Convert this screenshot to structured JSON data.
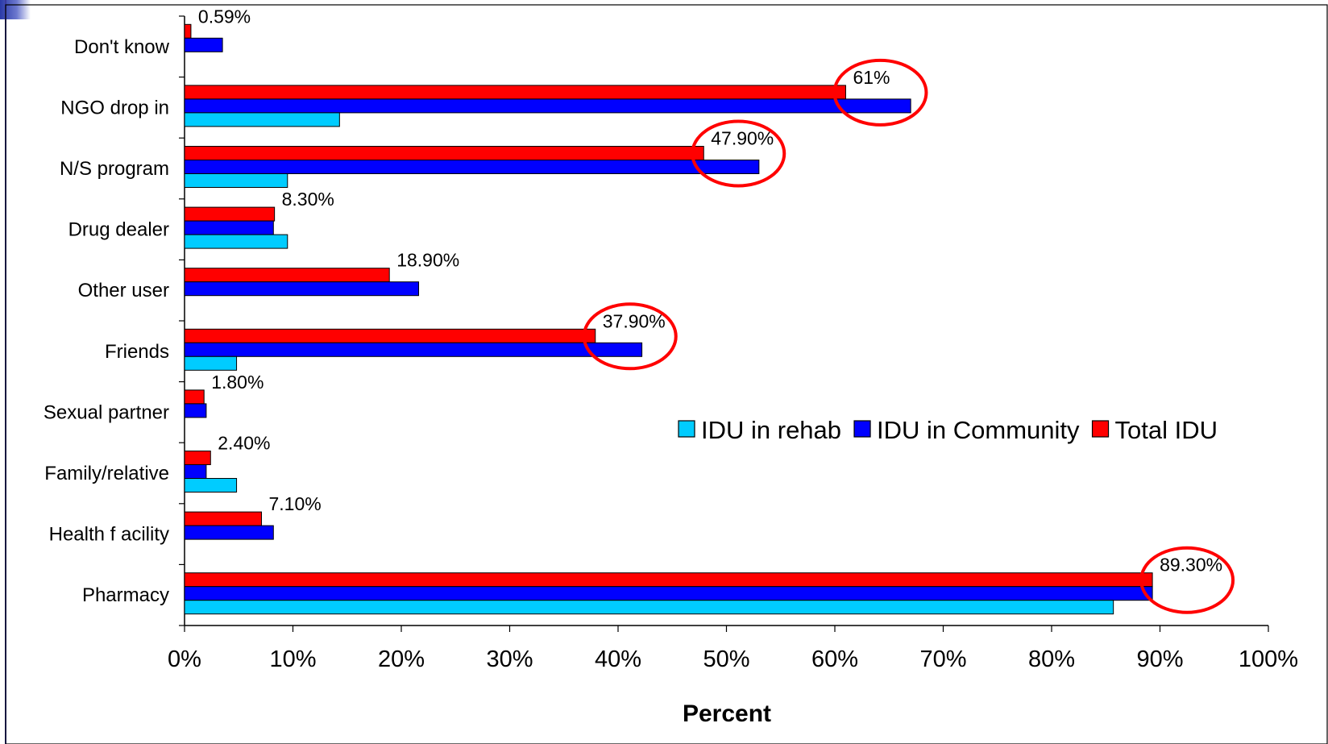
{
  "chart_data": {
    "type": "bar",
    "orientation": "horizontal",
    "categories": [
      "Don't know",
      "NGO drop in",
      "N/S program",
      "Drug dealer",
      "Other user",
      "Friends",
      "Sexual partner",
      "Family/relative",
      "Health f acility",
      "Pharmacy"
    ],
    "series": [
      {
        "name": "Total IDU",
        "color": "#ff0000",
        "values": [
          0.59,
          61,
          47.9,
          8.3,
          18.9,
          37.9,
          1.8,
          2.4,
          7.1,
          89.3
        ]
      },
      {
        "name": "IDU in Community",
        "color": "#0000ff",
        "values": [
          3.5,
          67,
          53,
          8.2,
          21.6,
          42.2,
          2,
          2,
          8.2,
          89.3
        ]
      },
      {
        "name": "IDU in rehab",
        "color": "#00ccff",
        "values": [
          0,
          14.3,
          9.5,
          9.5,
          0,
          4.8,
          0,
          4.8,
          0,
          85.7
        ]
      }
    ],
    "data_labels": [
      "0.59%",
      "61%",
      "47.90%",
      "8.30%",
      "18.90%",
      "37.90%",
      "1.80%",
      "2.40%",
      "7.10%",
      "89.30%"
    ],
    "highlighted_categories": [
      "NGO drop in",
      "N/S program",
      "Friends",
      "Pharmacy"
    ],
    "highlight_color": "#ff0000",
    "xlim": [
      0,
      100
    ],
    "x_ticks": [
      "0%",
      "10%",
      "20%",
      "30%",
      "40%",
      "50%",
      "60%",
      "70%",
      "80%",
      "90%",
      "100%"
    ],
    "xlabel": "Percent",
    "legend_order": [
      "IDU in rehab",
      "IDU in Community",
      "Total IDU"
    ],
    "legend_position": "right"
  }
}
